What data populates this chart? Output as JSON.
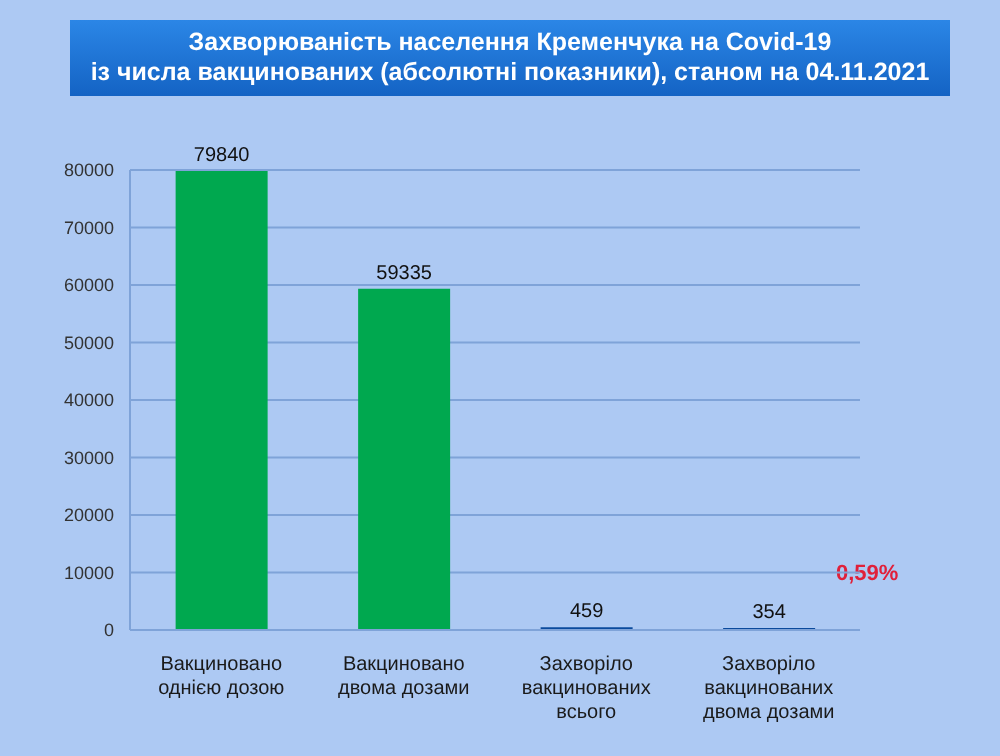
{
  "chart_data": {
    "type": "bar",
    "title": "Захворюваність населення Кременчука на Covid-19\nіз числа вакцинованих (абсолютні показники), станом на 04.11.2021",
    "categories": [
      "Вакциновано однією дозою",
      "Вакциновано двома дозами",
      "Захворіло вакцинованих всього",
      "Захворіло вакцинованих двома дозами"
    ],
    "values": [
      79840,
      59335,
      459,
      354
    ],
    "colors": [
      "#00a84f",
      "#00a84f",
      "#0b4a9c",
      "#0b4a9c"
    ],
    "ylim": [
      0,
      80000
    ],
    "yticks": [
      0,
      10000,
      20000,
      30000,
      40000,
      50000,
      60000,
      70000,
      80000
    ],
    "grid": "y",
    "data_labels": true,
    "annotations": [
      "0,59%"
    ]
  }
}
